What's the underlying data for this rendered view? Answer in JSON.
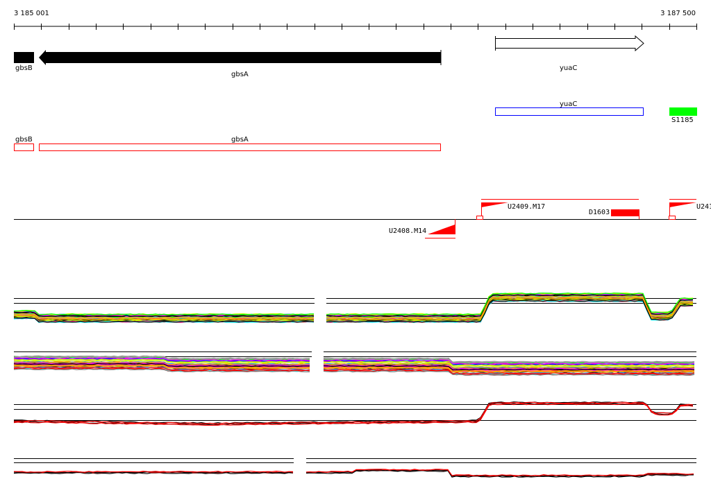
{
  "ruler": {
    "start_label": "3 185 001",
    "end_label": "3 187 500",
    "tick_count": 25
  },
  "genes": [
    {
      "name": "gbsB",
      "strand": "-"
    },
    {
      "name": "gbsA",
      "strand": "-"
    },
    {
      "name": "yuaC",
      "strand": "+"
    }
  ],
  "annotation_track": {
    "yuaC": "yuaC",
    "S1185": "S1185",
    "gbsB": "gbsB",
    "gbsA": "gbsA"
  },
  "features": {
    "u2408": "U2408.M14",
    "u2409": "U2409.M17",
    "d1603": "D1603",
    "u241": "U241"
  },
  "colors": {
    "gene_fill": "#000000",
    "transcript_outline": "#0000ff",
    "feature_green": "#00ff00",
    "feature_red": "#ff0000",
    "series_palette": [
      "#ff0000",
      "#ff00ff",
      "#00ffff",
      "#0000ff",
      "#ffa500",
      "#00ff00",
      "#808080",
      "#ccff00",
      "#ff1493",
      "#1e90ff",
      "#000000",
      "#a0a0a0"
    ]
  },
  "expression_tracks": 4
}
